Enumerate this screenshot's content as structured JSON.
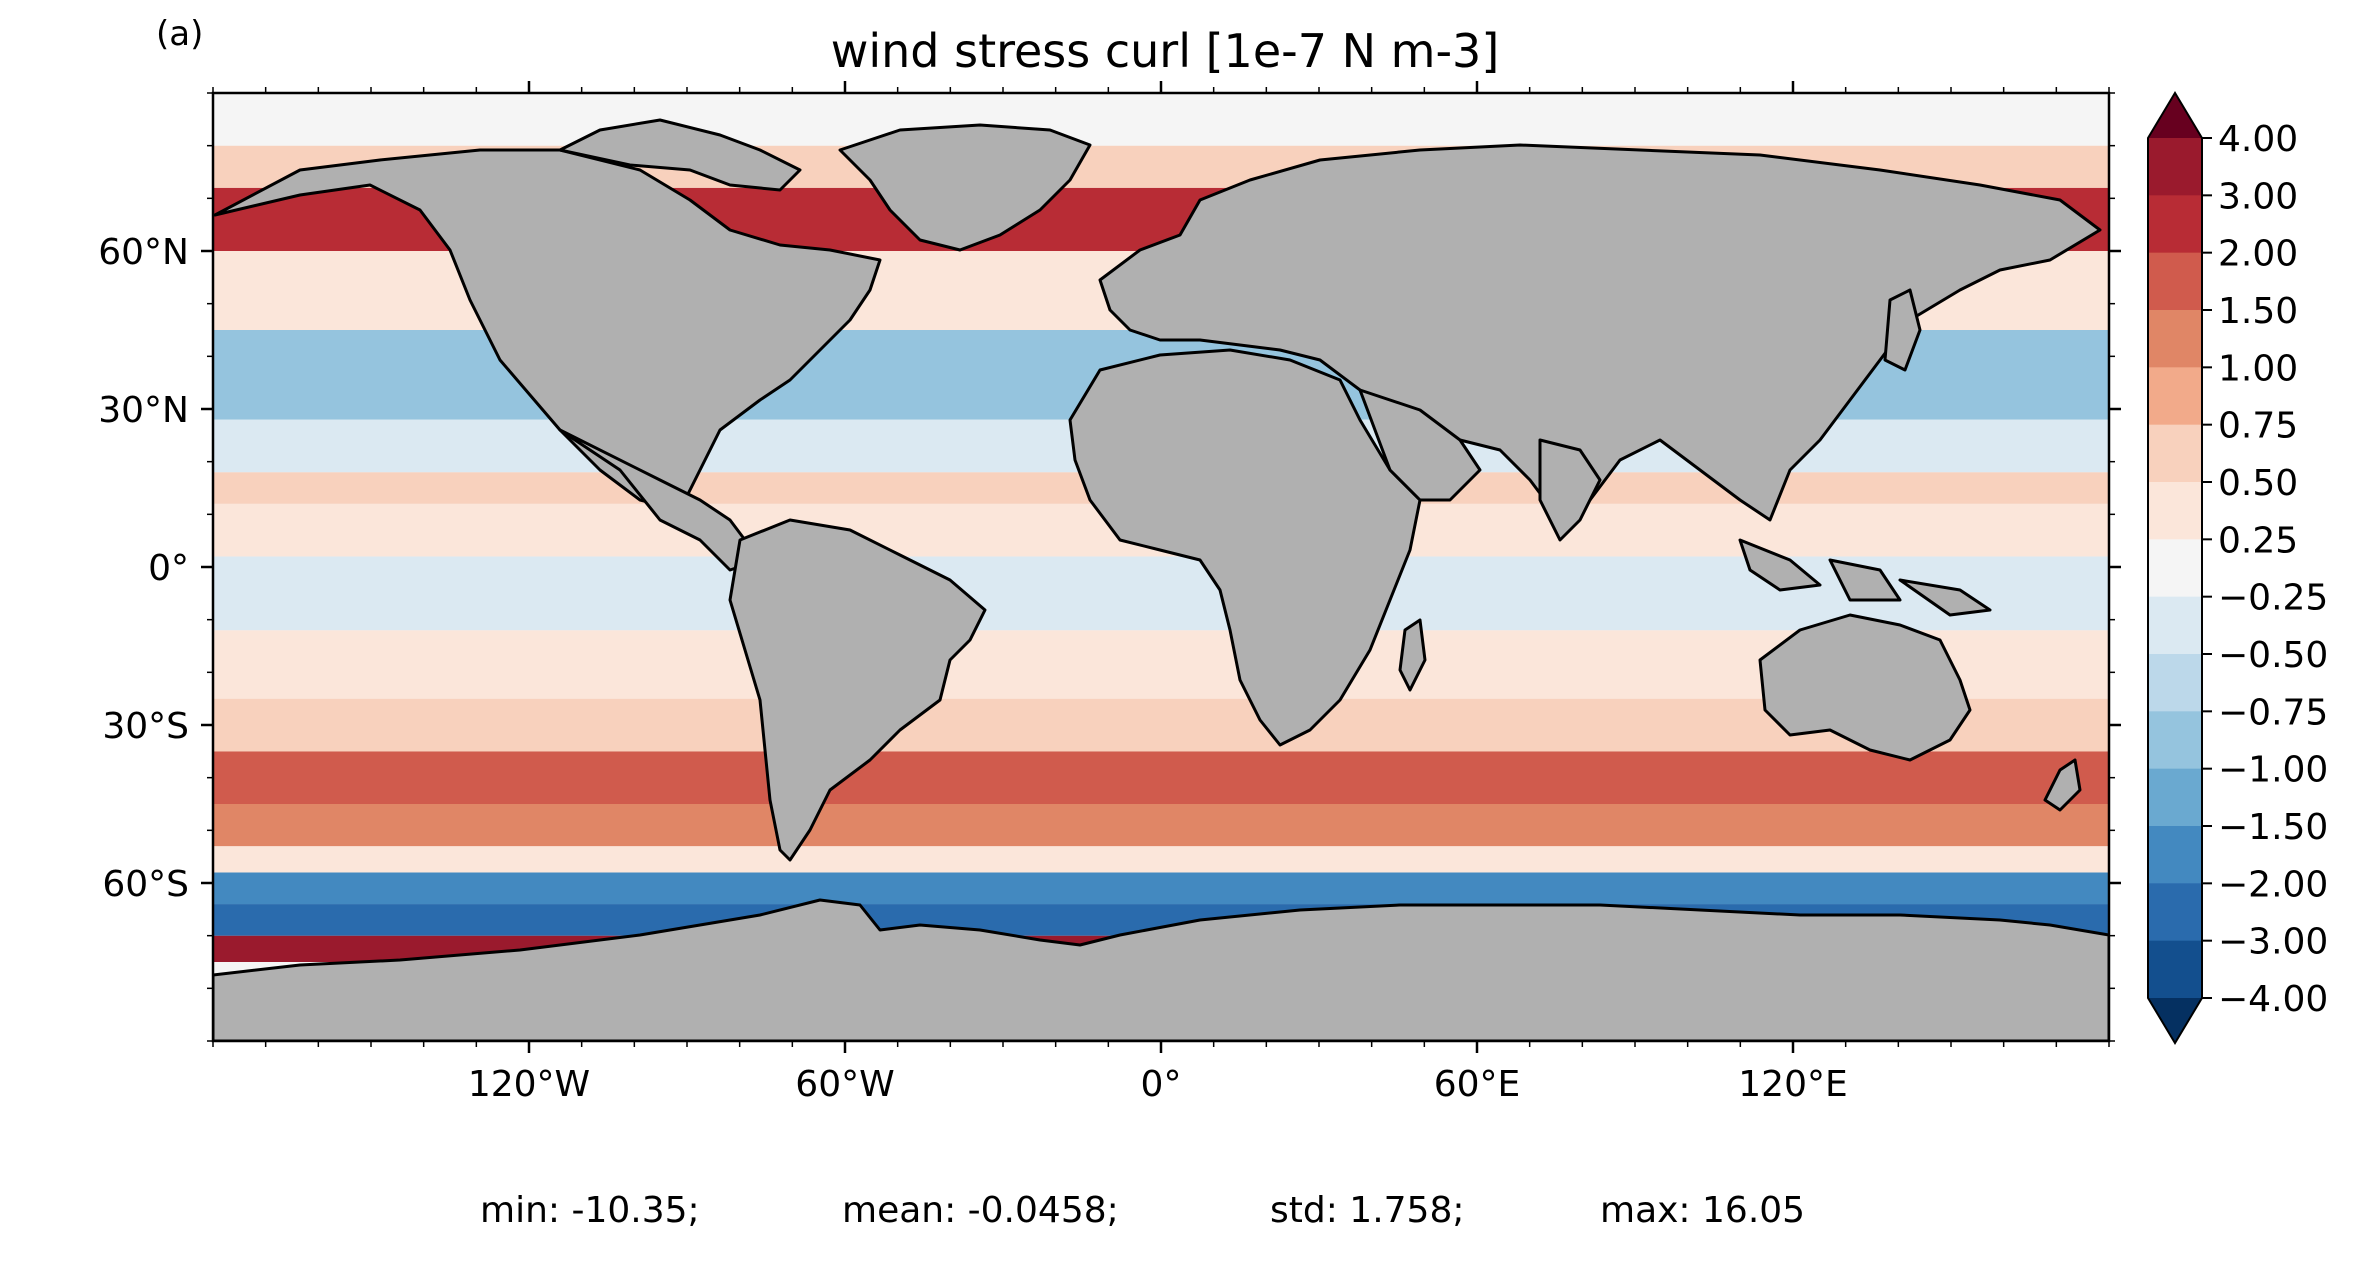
{
  "panel_label": "(a)",
  "title": "wind stress curl [1e-7 N m-3]",
  "stats": {
    "min": "min: -10.35;",
    "mean": "mean: -0.0458;",
    "std": "std: 1.758;",
    "max": "max: 16.05"
  },
  "map": {
    "projection": "PlateCarree",
    "extent": [
      -180,
      180,
      -90,
      90
    ],
    "land_color": "#b0b0b0",
    "coastline_color": "#000000",
    "lon_ticks": [
      -120,
      -60,
      0,
      60,
      120
    ],
    "lon_tick_labels": [
      "120°W",
      "60°W",
      "0°",
      "60°E",
      "120°E"
    ],
    "lat_ticks": [
      60,
      30,
      0,
      -30,
      -60
    ],
    "lat_tick_labels": [
      "60°N",
      "30°N",
      "0°",
      "30°S",
      "60°S"
    ]
  },
  "colorbar": {
    "levels": [
      "4.00",
      "3.00",
      "2.00",
      "1.50",
      "1.00",
      "0.75",
      "0.50",
      "0.25",
      "−0.25",
      "−0.50",
      "−0.75",
      "−1.00",
      "−1.50",
      "−2.00",
      "−3.00",
      "−4.00"
    ],
    "colors": [
      "#67001f",
      "#9a1a2d",
      "#b82c35",
      "#d05b4d",
      "#e08666",
      "#f2aa8a",
      "#f8d1bd",
      "#fbe6da",
      "#f5f5f5",
      "#dbe9f2",
      "#bcd8ea",
      "#95c4de",
      "#6aa9d0",
      "#4389c0",
      "#2a6bad",
      "#134f8e",
      "#053061"
    ],
    "extend": "both"
  },
  "chart_data": {
    "type": "heatmap",
    "title": "wind stress curl [1e-7 N m-3]",
    "units": "1e-7 N m-3",
    "xlabel": "",
    "ylabel": "",
    "xlim": [
      -180,
      180
    ],
    "ylim": [
      -90,
      90
    ],
    "zonal_band_values": [
      {
        "lat": [
          -90,
          -75
        ],
        "value": 0
      },
      {
        "lat": [
          -75,
          -70
        ],
        "value": 3.5
      },
      {
        "lat": [
          -70,
          -64
        ],
        "value": -2.5
      },
      {
        "lat": [
          -64,
          -58
        ],
        "value": -1.8
      },
      {
        "lat": [
          -58,
          -53
        ],
        "value": 0.3
      },
      {
        "lat": [
          -53,
          -45
        ],
        "value": 1.2
      },
      {
        "lat": [
          -45,
          -35
        ],
        "value": 1.5
      },
      {
        "lat": [
          -35,
          -25
        ],
        "value": 0.7
      },
      {
        "lat": [
          -25,
          -12
        ],
        "value": 0.4
      },
      {
        "lat": [
          -12,
          2
        ],
        "value": -0.3
      },
      {
        "lat": [
          2,
          12
        ],
        "value": 0.3
      },
      {
        "lat": [
          12,
          18
        ],
        "value": 0.7
      },
      {
        "lat": [
          18,
          28
        ],
        "value": -0.4
      },
      {
        "lat": [
          28,
          45
        ],
        "value": -0.8
      },
      {
        "lat": [
          45,
          60
        ],
        "value": 0.4
      },
      {
        "lat": [
          60,
          72
        ],
        "value": 2.0
      },
      {
        "lat": [
          72,
          80
        ],
        "value": 0.5
      },
      {
        "lat": [
          80,
          90
        ],
        "value": 0.1
      }
    ],
    "summary": {
      "min": -10.35,
      "mean": -0.0458,
      "std": 1.758,
      "max": 16.05
    }
  }
}
